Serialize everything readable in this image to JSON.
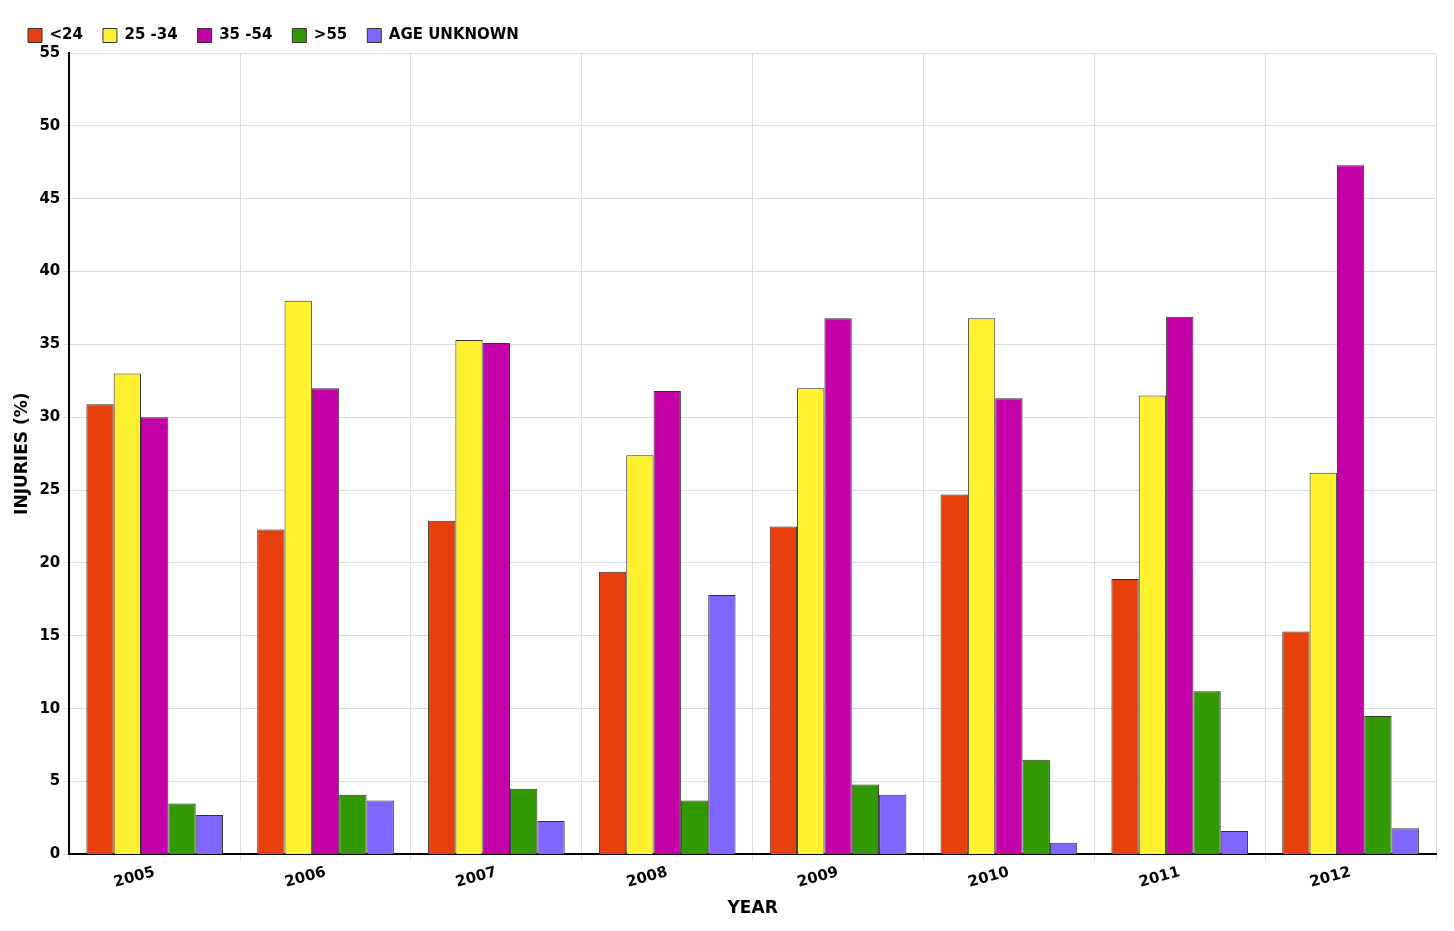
{
  "chart_data": {
    "type": "bar",
    "xlabel": "YEAR",
    "ylabel": "INJURIES (%)",
    "categories": [
      "2005",
      "2006",
      "2007",
      "2008",
      "2009",
      "2010",
      "2011",
      "2012"
    ],
    "series": [
      {
        "name": "<24",
        "color": "#e8400c",
        "values": [
          30.9,
          22.3,
          22.9,
          19.4,
          22.5,
          24.7,
          18.9,
          15.3
        ]
      },
      {
        "name": "25 -34",
        "color": "#fff030",
        "values": [
          33.0,
          38.0,
          35.3,
          27.4,
          32.0,
          36.8,
          31.5,
          26.2
        ]
      },
      {
        "name": "35 -54",
        "color": "#c400a8",
        "values": [
          30.0,
          32.0,
          35.1,
          31.8,
          36.8,
          31.3,
          36.9,
          47.3
        ]
      },
      {
        "name": ">55",
        "color": "#339900",
        "values": [
          3.5,
          4.1,
          4.5,
          3.7,
          4.8,
          6.5,
          11.2,
          9.5
        ]
      },
      {
        "name": "AGE UNKNOWN",
        "color": "#8066ff",
        "values": [
          2.7,
          3.7,
          2.3,
          17.8,
          4.1,
          0.8,
          1.6,
          1.8
        ]
      }
    ],
    "ylim": [
      0,
      55
    ],
    "yticks": [
      0,
      5,
      10,
      15,
      20,
      25,
      30,
      35,
      40,
      45,
      50,
      55
    ],
    "grid": true,
    "legend": "top left"
  }
}
